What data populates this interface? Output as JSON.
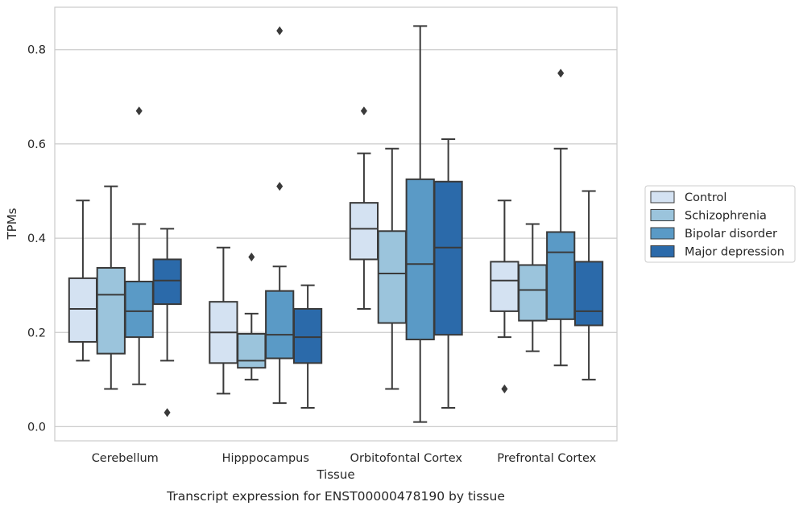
{
  "chart_data": {
    "type": "box",
    "xlabel": "Tissue",
    "ylabel": "TPMs",
    "ylim": [
      -0.03,
      0.89
    ],
    "yticks": [
      0.0,
      0.2,
      0.4,
      0.6,
      0.8
    ],
    "ytick_labels": [
      "0.0",
      "0.2",
      "0.4",
      "0.6",
      "0.8"
    ],
    "grid": "horizontal",
    "legend_position": "right",
    "categories": [
      "Cerebellum",
      "Hipppocampus",
      "Orbitofontal Cortex",
      "Prefrontal Cortex"
    ],
    "series": [
      {
        "name": "Control",
        "color": "#d4e2f2",
        "boxes": [
          {
            "whislo": 0.14,
            "q1": 0.18,
            "med": 0.25,
            "q3": 0.315,
            "whishi": 0.48,
            "fliers": []
          },
          {
            "whislo": 0.07,
            "q1": 0.135,
            "med": 0.2,
            "q3": 0.265,
            "whishi": 0.38,
            "fliers": []
          },
          {
            "whislo": 0.25,
            "q1": 0.355,
            "med": 0.42,
            "q3": 0.475,
            "whishi": 0.58,
            "fliers": [
              0.67
            ]
          },
          {
            "whislo": 0.19,
            "q1": 0.245,
            "med": 0.31,
            "q3": 0.35,
            "whishi": 0.48,
            "fliers": [
              0.08
            ]
          }
        ]
      },
      {
        "name": "Schizophrenia",
        "color": "#9bc4dc",
        "boxes": [
          {
            "whislo": 0.08,
            "q1": 0.155,
            "med": 0.28,
            "q3": 0.337,
            "whishi": 0.51,
            "fliers": []
          },
          {
            "whislo": 0.1,
            "q1": 0.125,
            "med": 0.14,
            "q3": 0.197,
            "whishi": 0.24,
            "fliers": [
              0.36
            ]
          },
          {
            "whislo": 0.08,
            "q1": 0.22,
            "med": 0.325,
            "q3": 0.415,
            "whishi": 0.59,
            "fliers": []
          },
          {
            "whislo": 0.16,
            "q1": 0.225,
            "med": 0.29,
            "q3": 0.343,
            "whishi": 0.43,
            "fliers": []
          }
        ]
      },
      {
        "name": "Bipolar disorder",
        "color": "#5a9ac6",
        "boxes": [
          {
            "whislo": 0.09,
            "q1": 0.19,
            "med": 0.245,
            "q3": 0.308,
            "whishi": 0.43,
            "fliers": [
              0.67
            ]
          },
          {
            "whislo": 0.05,
            "q1": 0.145,
            "med": 0.195,
            "q3": 0.288,
            "whishi": 0.34,
            "fliers": [
              0.51,
              0.84
            ]
          },
          {
            "whislo": 0.01,
            "q1": 0.185,
            "med": 0.345,
            "q3": 0.525,
            "whishi": 0.85,
            "fliers": []
          },
          {
            "whislo": 0.13,
            "q1": 0.228,
            "med": 0.37,
            "q3": 0.413,
            "whishi": 0.59,
            "fliers": [
              0.75
            ]
          }
        ]
      },
      {
        "name": "Major depression",
        "color": "#2b6aaa",
        "boxes": [
          {
            "whislo": 0.14,
            "q1": 0.26,
            "med": 0.31,
            "q3": 0.355,
            "whishi": 0.42,
            "fliers": [
              0.03
            ]
          },
          {
            "whislo": 0.04,
            "q1": 0.135,
            "med": 0.19,
            "q3": 0.25,
            "whishi": 0.3,
            "fliers": []
          },
          {
            "whislo": 0.04,
            "q1": 0.195,
            "med": 0.38,
            "q3": 0.52,
            "whishi": 0.61,
            "fliers": []
          },
          {
            "whislo": 0.1,
            "q1": 0.215,
            "med": 0.245,
            "q3": 0.35,
            "whishi": 0.5,
            "fliers": []
          }
        ]
      }
    ]
  },
  "caption": "Transcript expression for ENST00000478190 by tissue",
  "colors": {
    "grid": "#cccccc",
    "frame": "#cccccc",
    "line": "#3a3a3a",
    "text": "#262626"
  }
}
